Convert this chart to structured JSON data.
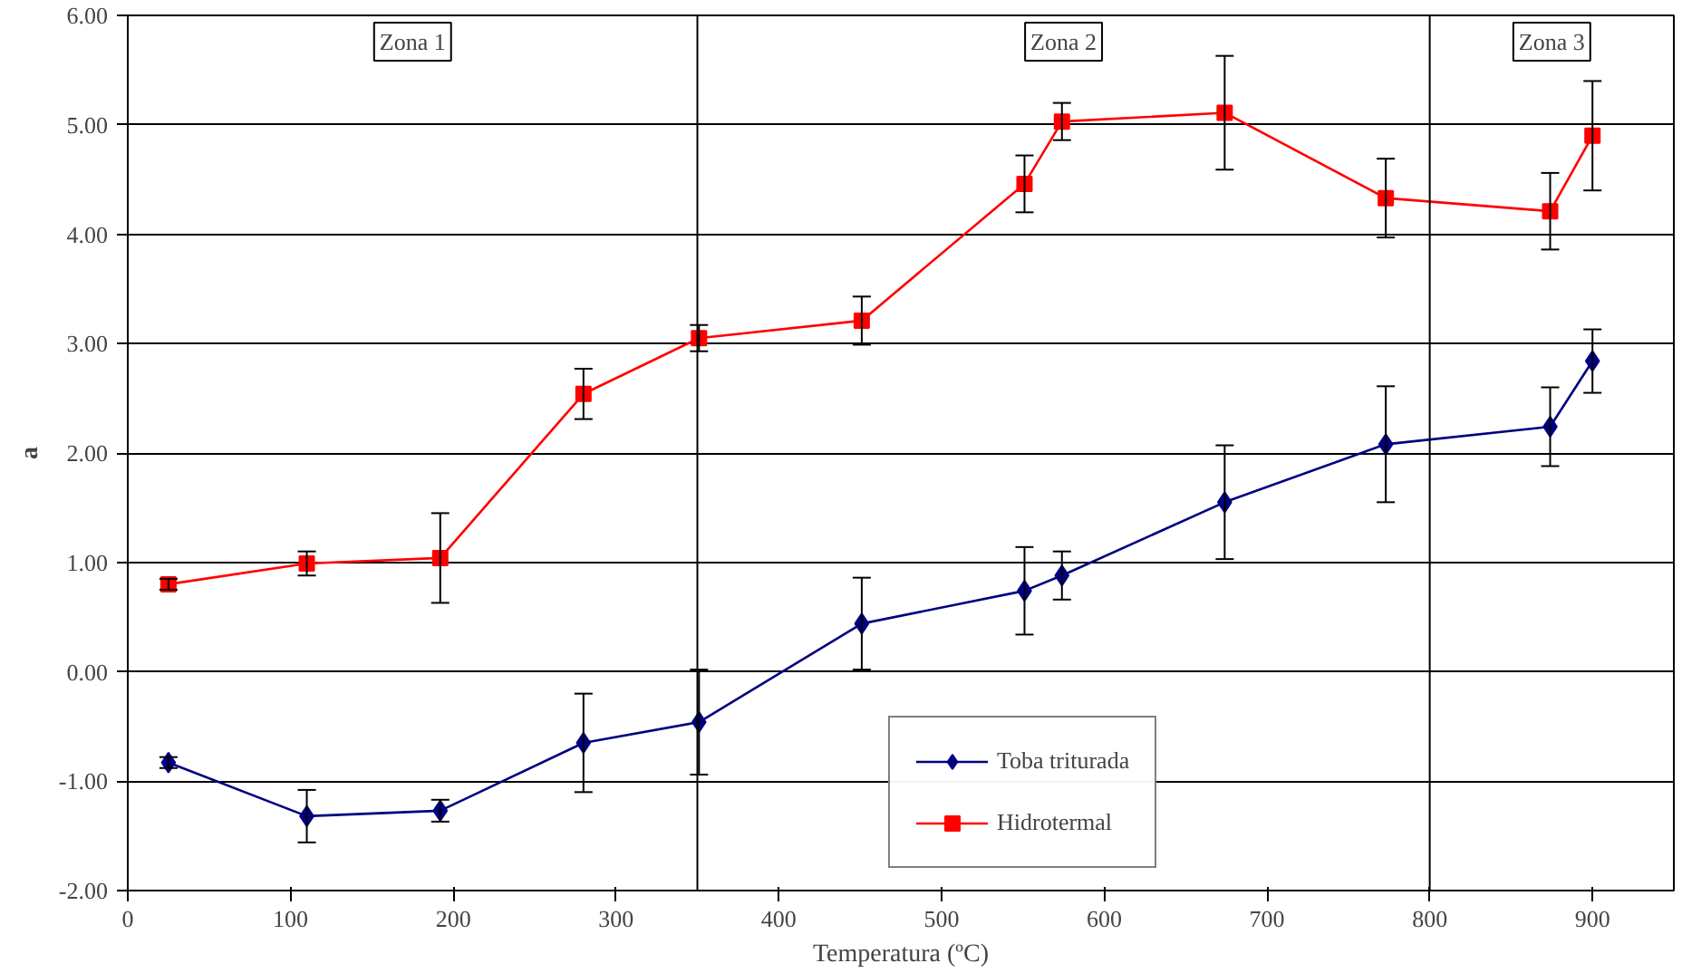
{
  "chart_data": {
    "type": "line",
    "xlabel": "Temperatura (ºC)",
    "ylabel": "a",
    "xlim": [
      0,
      950
    ],
    "xticks": [
      0,
      100,
      200,
      300,
      400,
      500,
      600,
      700,
      800,
      900
    ],
    "ylim": [
      -2,
      6
    ],
    "yticks": [
      {
        "value": -2,
        "label": "-2.00"
      },
      {
        "value": -1,
        "label": "-1.00"
      },
      {
        "value": 0,
        "label": "0.00"
      },
      {
        "value": 1,
        "label": "1.00"
      },
      {
        "value": 2,
        "label": "2.00"
      },
      {
        "value": 3,
        "label": "3.00"
      },
      {
        "value": 4,
        "label": "4.00"
      },
      {
        "value": 5,
        "label": "5.00"
      },
      {
        "value": 6,
        "label": "6.00"
      }
    ],
    "grid": "y",
    "legend": "bottom",
    "series": [
      {
        "name": "Toba triturada",
        "color": "#000080",
        "marker": "diamond",
        "x": [
          25,
          110,
          192,
          280,
          351,
          451,
          551,
          574,
          674,
          773,
          874,
          900
        ],
        "values": [
          -0.83,
          -1.32,
          -1.27,
          -0.65,
          -0.46,
          0.44,
          0.74,
          0.88,
          1.55,
          2.08,
          2.24,
          2.84
        ],
        "errors": [
          0.05,
          0.24,
          0.1,
          0.45,
          0.48,
          0.42,
          0.4,
          0.22,
          0.52,
          0.53,
          0.36,
          0.29
        ]
      },
      {
        "name": "Hidrotermal",
        "color": "#ff0000",
        "marker": "square",
        "x": [
          25,
          110,
          192,
          280,
          351,
          451,
          551,
          574,
          674,
          773,
          874,
          900
        ],
        "values": [
          0.8,
          0.99,
          1.04,
          2.54,
          3.05,
          3.21,
          4.46,
          5.03,
          5.11,
          4.33,
          4.21,
          4.9
        ],
        "errors": [
          0.05,
          0.11,
          0.41,
          0.23,
          0.12,
          0.22,
          0.26,
          0.17,
          0.52,
          0.36,
          0.35,
          0.5
        ]
      }
    ],
    "ref_lines": [
      {
        "axis": "x",
        "value": 350,
        "color": "#000000"
      },
      {
        "axis": "x",
        "value": 800,
        "color": "#000000"
      }
    ],
    "annotations": [
      "Zona 1",
      "Zona 2",
      "Zona 3"
    ]
  }
}
